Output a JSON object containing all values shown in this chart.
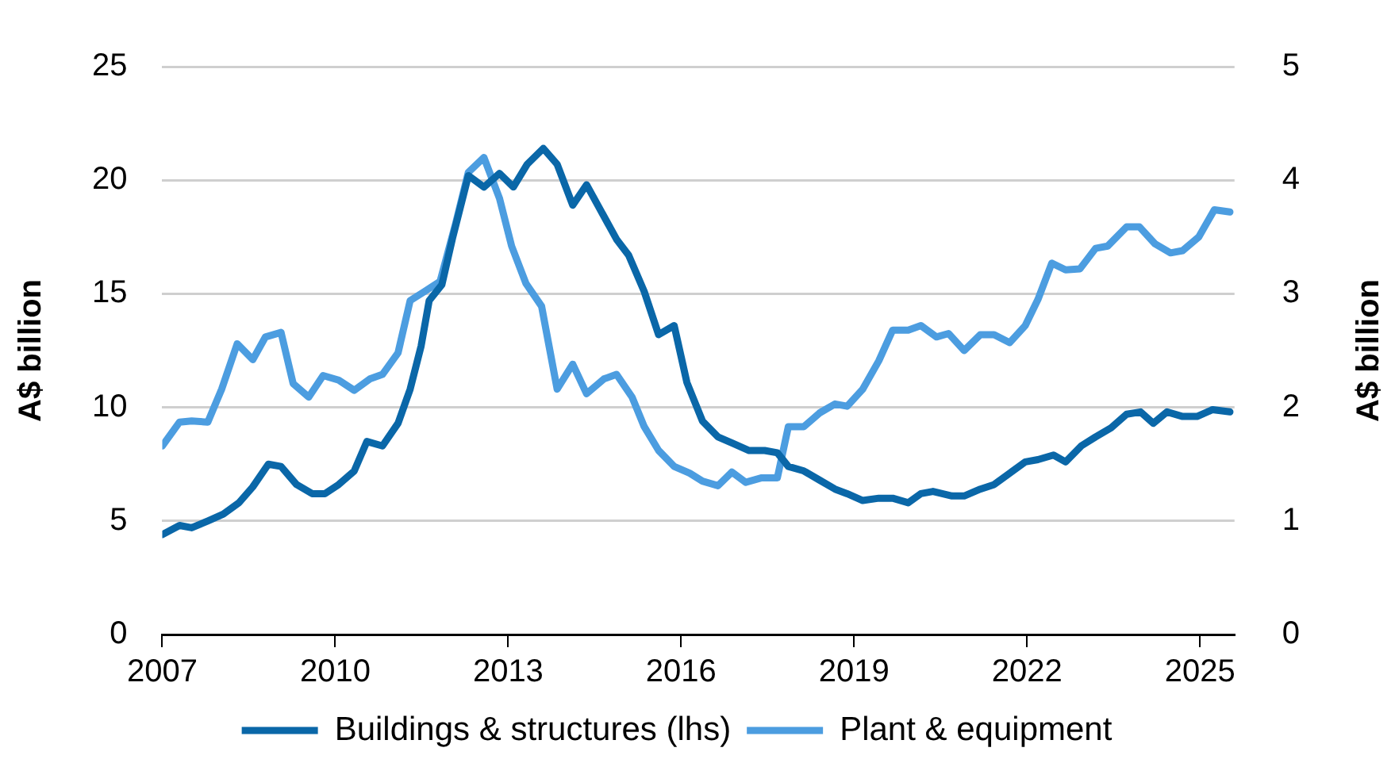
{
  "chart_data": {
    "type": "line",
    "ylabel": "A$ billion",
    "y2label": "A$ billion",
    "xlim": [
      2007,
      2025.6
    ],
    "xticks": [
      2007,
      2010,
      2013,
      2016,
      2019,
      2022,
      2025
    ],
    "ylim": [
      0,
      25
    ],
    "yticks": [
      0,
      5,
      10,
      15,
      20,
      25
    ],
    "y2lim": [
      0,
      5
    ],
    "y2ticks": [
      0,
      1,
      2,
      3,
      4,
      5
    ],
    "grid": "y",
    "legend": "bottom",
    "marker": "none",
    "line_style": "solid",
    "series": [
      {
        "name": "Buildings & structures (lhs)",
        "color": "#0a67a8",
        "x": [
          2007.0,
          2007.3,
          2007.51,
          2007.79,
          2008.06,
          2008.33,
          2008.57,
          2008.84,
          2009.06,
          2009.33,
          2009.6,
          2009.82,
          2010.06,
          2010.33,
          2010.55,
          2010.82,
          2011.09,
          2011.3,
          2011.49,
          2011.63,
          2011.85,
          2012.04,
          2012.31,
          2012.58,
          2012.85,
          2013.09,
          2013.33,
          2013.61,
          2013.85,
          2014.12,
          2014.36,
          2014.88,
          2015.09,
          2015.36,
          2015.61,
          2015.88,
          2016.1,
          2016.37,
          2016.64,
          2016.91,
          2017.18,
          2017.45,
          2017.67,
          2017.86,
          2018.13,
          2018.4,
          2018.67,
          2018.88,
          2019.15,
          2019.43,
          2019.67,
          2019.94,
          2020.16,
          2020.37,
          2020.7,
          2020.91,
          2021.19,
          2021.43,
          2021.7,
          2021.97,
          2022.19,
          2022.46,
          2022.67,
          2022.94,
          2023.19,
          2023.46,
          2023.73,
          2023.97,
          2024.19,
          2024.43,
          2024.7,
          2024.95,
          2025.22,
          2025.52
        ],
        "values": [
          4.4,
          4.8,
          4.7,
          5.0,
          5.3,
          5.8,
          6.5,
          7.5,
          7.4,
          6.6,
          6.2,
          6.2,
          6.6,
          7.2,
          8.5,
          8.3,
          9.3,
          10.8,
          12.7,
          14.7,
          15.4,
          17.5,
          20.2,
          19.7,
          20.3,
          19.7,
          20.7,
          21.4,
          20.7,
          18.9,
          19.8,
          17.4,
          16.7,
          15.1,
          13.2,
          13.6,
          11.1,
          9.4,
          8.7,
          8.4,
          8.1,
          8.1,
          8.0,
          7.4,
          7.2,
          6.8,
          6.4,
          6.2,
          5.9,
          6.0,
          6.0,
          5.8,
          6.2,
          6.3,
          6.1,
          6.1,
          6.4,
          6.6,
          7.1,
          7.6,
          7.7,
          7.9,
          7.6,
          8.3,
          8.7,
          9.1,
          9.7,
          9.8,
          9.3,
          9.8,
          9.6,
          9.6,
          9.9,
          9.8
        ]
      },
      {
        "name": "Plant & equipment",
        "color": "#4c9de0",
        "axis": "y2",
        "x": [
          2007.0,
          2007.3,
          2007.51,
          2007.79,
          2008.03,
          2008.3,
          2008.57,
          2008.79,
          2009.06,
          2009.27,
          2009.54,
          2009.79,
          2010.06,
          2010.33,
          2010.6,
          2010.82,
          2011.09,
          2011.3,
          2011.55,
          2011.82,
          2012.09,
          2012.31,
          2012.58,
          2012.85,
          2013.06,
          2013.31,
          2013.58,
          2013.85,
          2014.12,
          2014.36,
          2014.66,
          2014.88,
          2015.15,
          2015.36,
          2015.61,
          2015.88,
          2016.15,
          2016.37,
          2016.64,
          2016.88,
          2017.12,
          2017.4,
          2017.67,
          2017.86,
          2018.13,
          2018.4,
          2018.67,
          2018.88,
          2019.15,
          2019.43,
          2019.67,
          2019.94,
          2020.16,
          2020.43,
          2020.64,
          2020.91,
          2021.19,
          2021.43,
          2021.7,
          2021.97,
          2022.19,
          2022.43,
          2022.67,
          2022.92,
          2023.19,
          2023.4,
          2023.73,
          2023.95,
          2024.22,
          2024.49,
          2024.7,
          2024.98,
          2025.25,
          2025.52
        ],
        "values": [
          1.66,
          1.87,
          1.88,
          1.87,
          2.16,
          2.56,
          2.42,
          2.62,
          2.66,
          2.21,
          2.09,
          2.28,
          2.24,
          2.15,
          2.25,
          2.29,
          2.48,
          2.94,
          3.02,
          3.11,
          3.62,
          4.07,
          4.2,
          3.84,
          3.42,
          3.09,
          2.89,
          2.16,
          2.38,
          2.12,
          2.25,
          2.29,
          2.09,
          1.83,
          1.62,
          1.48,
          1.42,
          1.35,
          1.31,
          1.43,
          1.34,
          1.38,
          1.38,
          1.83,
          1.83,
          1.95,
          2.03,
          2.01,
          2.16,
          2.41,
          2.68,
          2.68,
          2.72,
          2.62,
          2.65,
          2.5,
          2.64,
          2.64,
          2.57,
          2.72,
          2.95,
          3.27,
          3.21,
          3.22,
          3.4,
          3.42,
          3.59,
          3.59,
          3.44,
          3.36,
          3.38,
          3.5,
          3.74,
          3.72
        ]
      }
    ]
  }
}
